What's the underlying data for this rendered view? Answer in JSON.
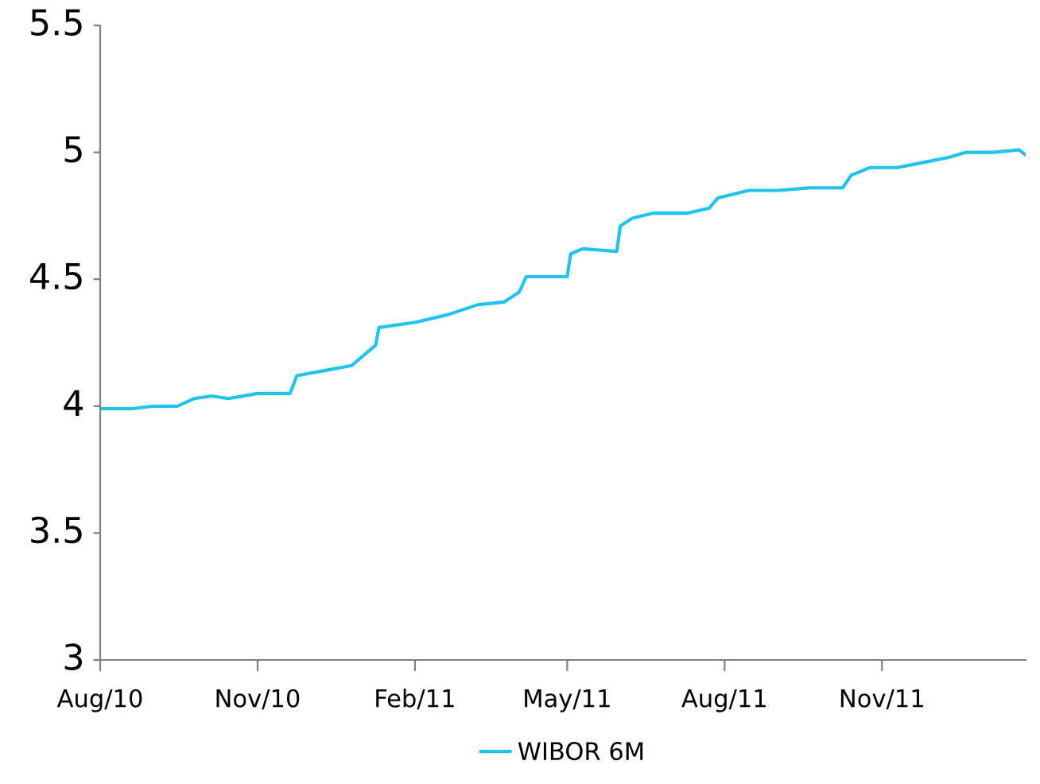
{
  "chart_data": {
    "type": "line",
    "x": [
      "2010-08-01",
      "2010-08-20",
      "2010-09-01",
      "2010-09-15",
      "2010-09-25",
      "2010-10-05",
      "2010-10-15",
      "2010-11-01",
      "2010-11-20",
      "2010-11-24",
      "2010-12-10",
      "2010-12-26",
      "2011-01-09",
      "2011-01-11",
      "2011-02-01",
      "2011-02-20",
      "2011-03-10",
      "2011-03-25",
      "2011-04-03",
      "2011-04-07",
      "2011-04-20",
      "2011-05-01",
      "2011-05-03",
      "2011-05-10",
      "2011-05-30",
      "2011-06-01",
      "2011-06-08",
      "2011-06-20",
      "2011-07-10",
      "2011-07-23",
      "2011-07-28",
      "2011-08-15",
      "2011-09-01",
      "2011-09-20",
      "2011-10-09",
      "2011-10-14",
      "2011-10-25",
      "2011-11-10",
      "2011-11-25",
      "2011-12-10",
      "2011-12-20",
      "2012-01-05",
      "2012-01-20",
      "2012-01-24"
    ],
    "series": [
      {
        "name": "WIBOR 6M",
        "color": "#1fc3ec",
        "values": [
          3.99,
          3.99,
          4.0,
          4.0,
          4.03,
          4.04,
          4.03,
          4.05,
          4.05,
          4.12,
          4.14,
          4.16,
          4.24,
          4.31,
          4.33,
          4.36,
          4.4,
          4.41,
          4.45,
          4.51,
          4.51,
          4.51,
          4.6,
          4.62,
          4.61,
          4.71,
          4.74,
          4.76,
          4.76,
          4.78,
          4.82,
          4.85,
          4.85,
          4.86,
          4.86,
          4.91,
          4.94,
          4.94,
          4.96,
          4.98,
          5.0,
          5.0,
          5.01,
          4.99
        ]
      }
    ],
    "xlim": [
      "2010-08-01",
      "2012-01-24"
    ],
    "xticks": [
      {
        "value": "2010-08-01",
        "label": "Aug/10"
      },
      {
        "value": "2010-11-01",
        "label": "Nov/10"
      },
      {
        "value": "2011-02-01",
        "label": "Feb/11"
      },
      {
        "value": "2011-05-01",
        "label": "May/11"
      },
      {
        "value": "2011-08-01",
        "label": "Aug/11"
      },
      {
        "value": "2011-11-01",
        "label": "Nov/11"
      }
    ],
    "ylim": [
      3,
      5.5
    ],
    "yticks": [
      3,
      3.5,
      4,
      4.5,
      5,
      5.5
    ],
    "legend": "bottom",
    "grid": false
  }
}
